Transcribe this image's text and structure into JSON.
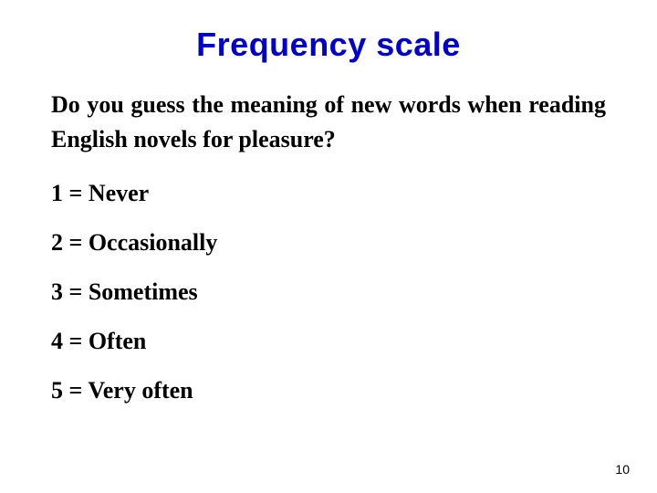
{
  "title": {
    "text": "Frequency scale",
    "color": "#0000cc",
    "fontsize": 36
  },
  "question": {
    "text": "Do you guess the meaning of new words when reading English novels for pleasure?",
    "color": "#000000",
    "fontsize": 26,
    "line_height": 1.45
  },
  "scale": {
    "fontsize": 26,
    "color": "#000000",
    "items": [
      "1 = Never",
      "2 = Occasionally",
      "3 = Sometimes",
      "4 = Often",
      "5 = Very often"
    ]
  },
  "page_number": {
    "text": "10",
    "color": "#000000",
    "fontsize": 14
  },
  "background_color": "#ffffff"
}
